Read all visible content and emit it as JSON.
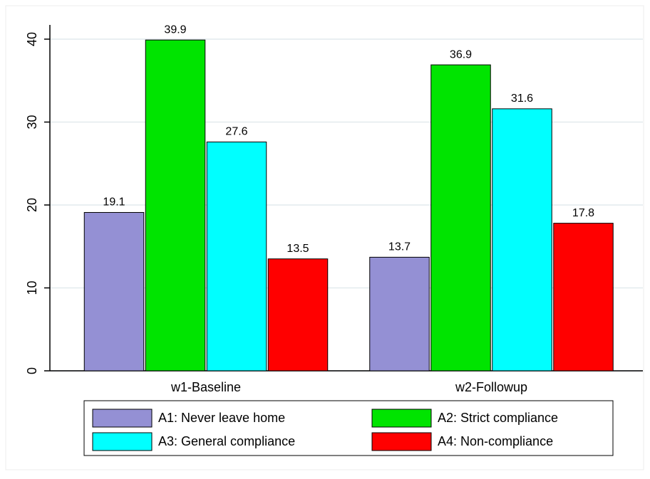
{
  "chart_data": {
    "type": "bar",
    "categories": [
      "w1-Baseline",
      "w2-Followup"
    ],
    "series": [
      {
        "name": "A1: Never leave home",
        "color": "#9490d4",
        "values": [
          19.1,
          13.7
        ]
      },
      {
        "name": "A2: Strict compliance",
        "color": "#00e400",
        "values": [
          39.9,
          36.9
        ]
      },
      {
        "name": "A3: General compliance",
        "color": "#00ffff",
        "values": [
          27.6,
          31.6
        ]
      },
      {
        "name": "A4: Non-compliance",
        "color": "#ff0000",
        "values": [
          13.5,
          17.8
        ]
      }
    ],
    "ylim": [
      0,
      40
    ],
    "yticks": [
      0,
      10,
      20,
      30,
      40
    ],
    "grid": true,
    "legend": "bottom"
  }
}
